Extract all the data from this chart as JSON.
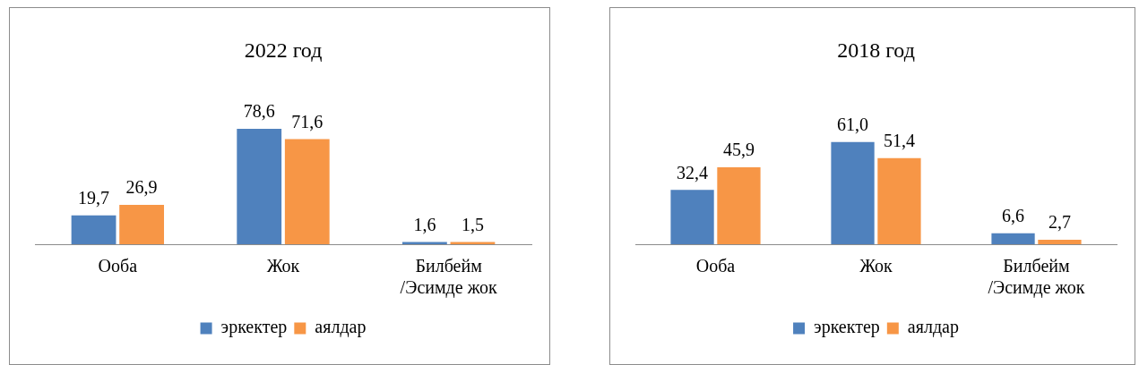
{
  "chart_data": [
    {
      "type": "bar",
      "title": "2022 год",
      "categories": [
        "Ооба",
        "Жок",
        "Билбейм\n/Эсимде жок"
      ],
      "series": [
        {
          "name": "эркектер",
          "color": "#4f81bd",
          "values": [
            19.7,
            78.6,
            1.6
          ],
          "value_labels": [
            "19,7",
            "78,6",
            "1,6"
          ]
        },
        {
          "name": "аялдар",
          "color": "#f79646",
          "values": [
            26.9,
            71.6,
            1.5
          ],
          "value_labels": [
            "26,9",
            "71,6",
            "1,5"
          ]
        }
      ],
      "legend": "bottom",
      "grid": false
    },
    {
      "type": "bar",
      "title": "2018 год",
      "categories": [
        "Ооба",
        "Жок",
        "Билбейм\n/Эсимде жок"
      ],
      "series": [
        {
          "name": "эркектер",
          "color": "#4f81bd",
          "values": [
            32.4,
            61.0,
            6.6
          ],
          "value_labels": [
            "32,4",
            "61,0",
            "6,6"
          ]
        },
        {
          "name": "аялдар",
          "color": "#f79646",
          "values": [
            45.9,
            51.4,
            2.7
          ],
          "value_labels": [
            "45,9",
            "51,4",
            "2,7"
          ]
        }
      ],
      "legend": "bottom",
      "grid": false
    }
  ]
}
